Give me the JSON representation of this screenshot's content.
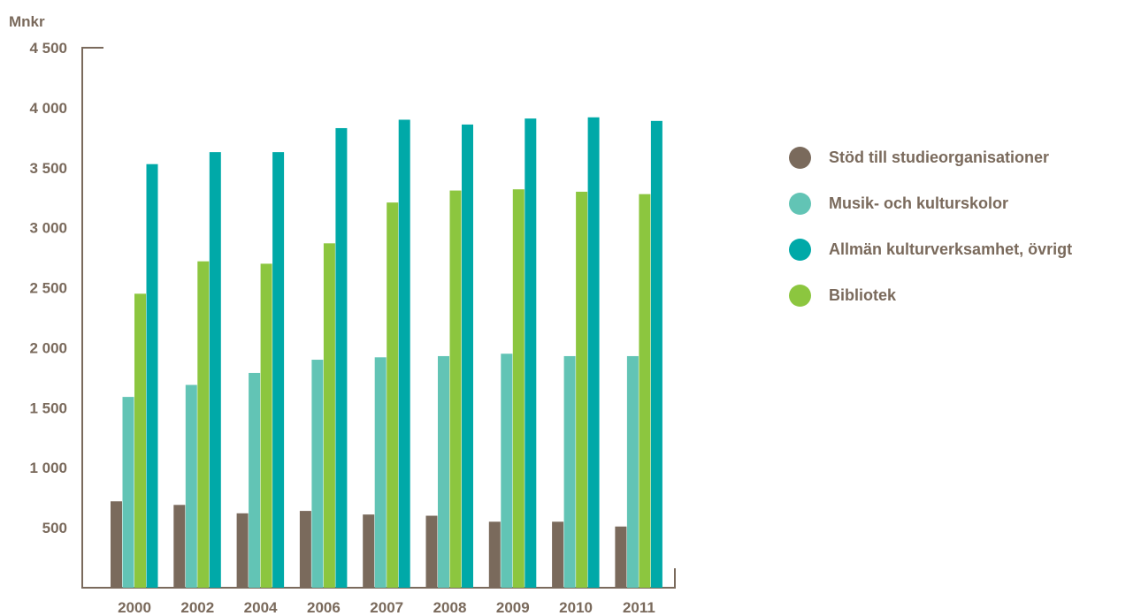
{
  "chart_data": {
    "type": "bar",
    "unit_label": "Mnkr",
    "categories": [
      "2000",
      "2002",
      "2004",
      "2006",
      "2007",
      "2008",
      "2009",
      "2010",
      "2011"
    ],
    "series": [
      {
        "name": "Stöd till studieorganisationer",
        "color": "#7a6a5c",
        "values": [
          720,
          690,
          620,
          640,
          610,
          600,
          550,
          550,
          510
        ]
      },
      {
        "name": "Musik- och kulturskolor",
        "color": "#62c4b5",
        "values": [
          1590,
          1690,
          1790,
          1900,
          1920,
          1930,
          1950,
          1930,
          1930
        ]
      },
      {
        "name": "Allmän kulturverksamhet, övrigt",
        "color": "#00a9a8",
        "values": [
          3530,
          3630,
          3630,
          3830,
          3900,
          3860,
          3910,
          3920,
          3890
        ]
      },
      {
        "name": "Bibliotek",
        "color": "#8cc63f",
        "values": [
          2450,
          2720,
          2700,
          2870,
          3210,
          3310,
          3320,
          3300,
          3280
        ]
      }
    ],
    "bar_order": [
      0,
      1,
      3,
      2
    ],
    "y_ticks": [
      {
        "value": 500,
        "label": "500"
      },
      {
        "value": 1000,
        "label": "1 000"
      },
      {
        "value": 1500,
        "label": "1 500"
      },
      {
        "value": 2000,
        "label": "2 000"
      },
      {
        "value": 2500,
        "label": "2 500"
      },
      {
        "value": 3000,
        "label": "3 000"
      },
      {
        "value": 3500,
        "label": "3 500"
      },
      {
        "value": 4000,
        "label": "4 000"
      },
      {
        "value": 4500,
        "label": "4 500"
      }
    ],
    "ylim": [
      0,
      4500
    ],
    "grid": false,
    "legend_position": "right"
  }
}
